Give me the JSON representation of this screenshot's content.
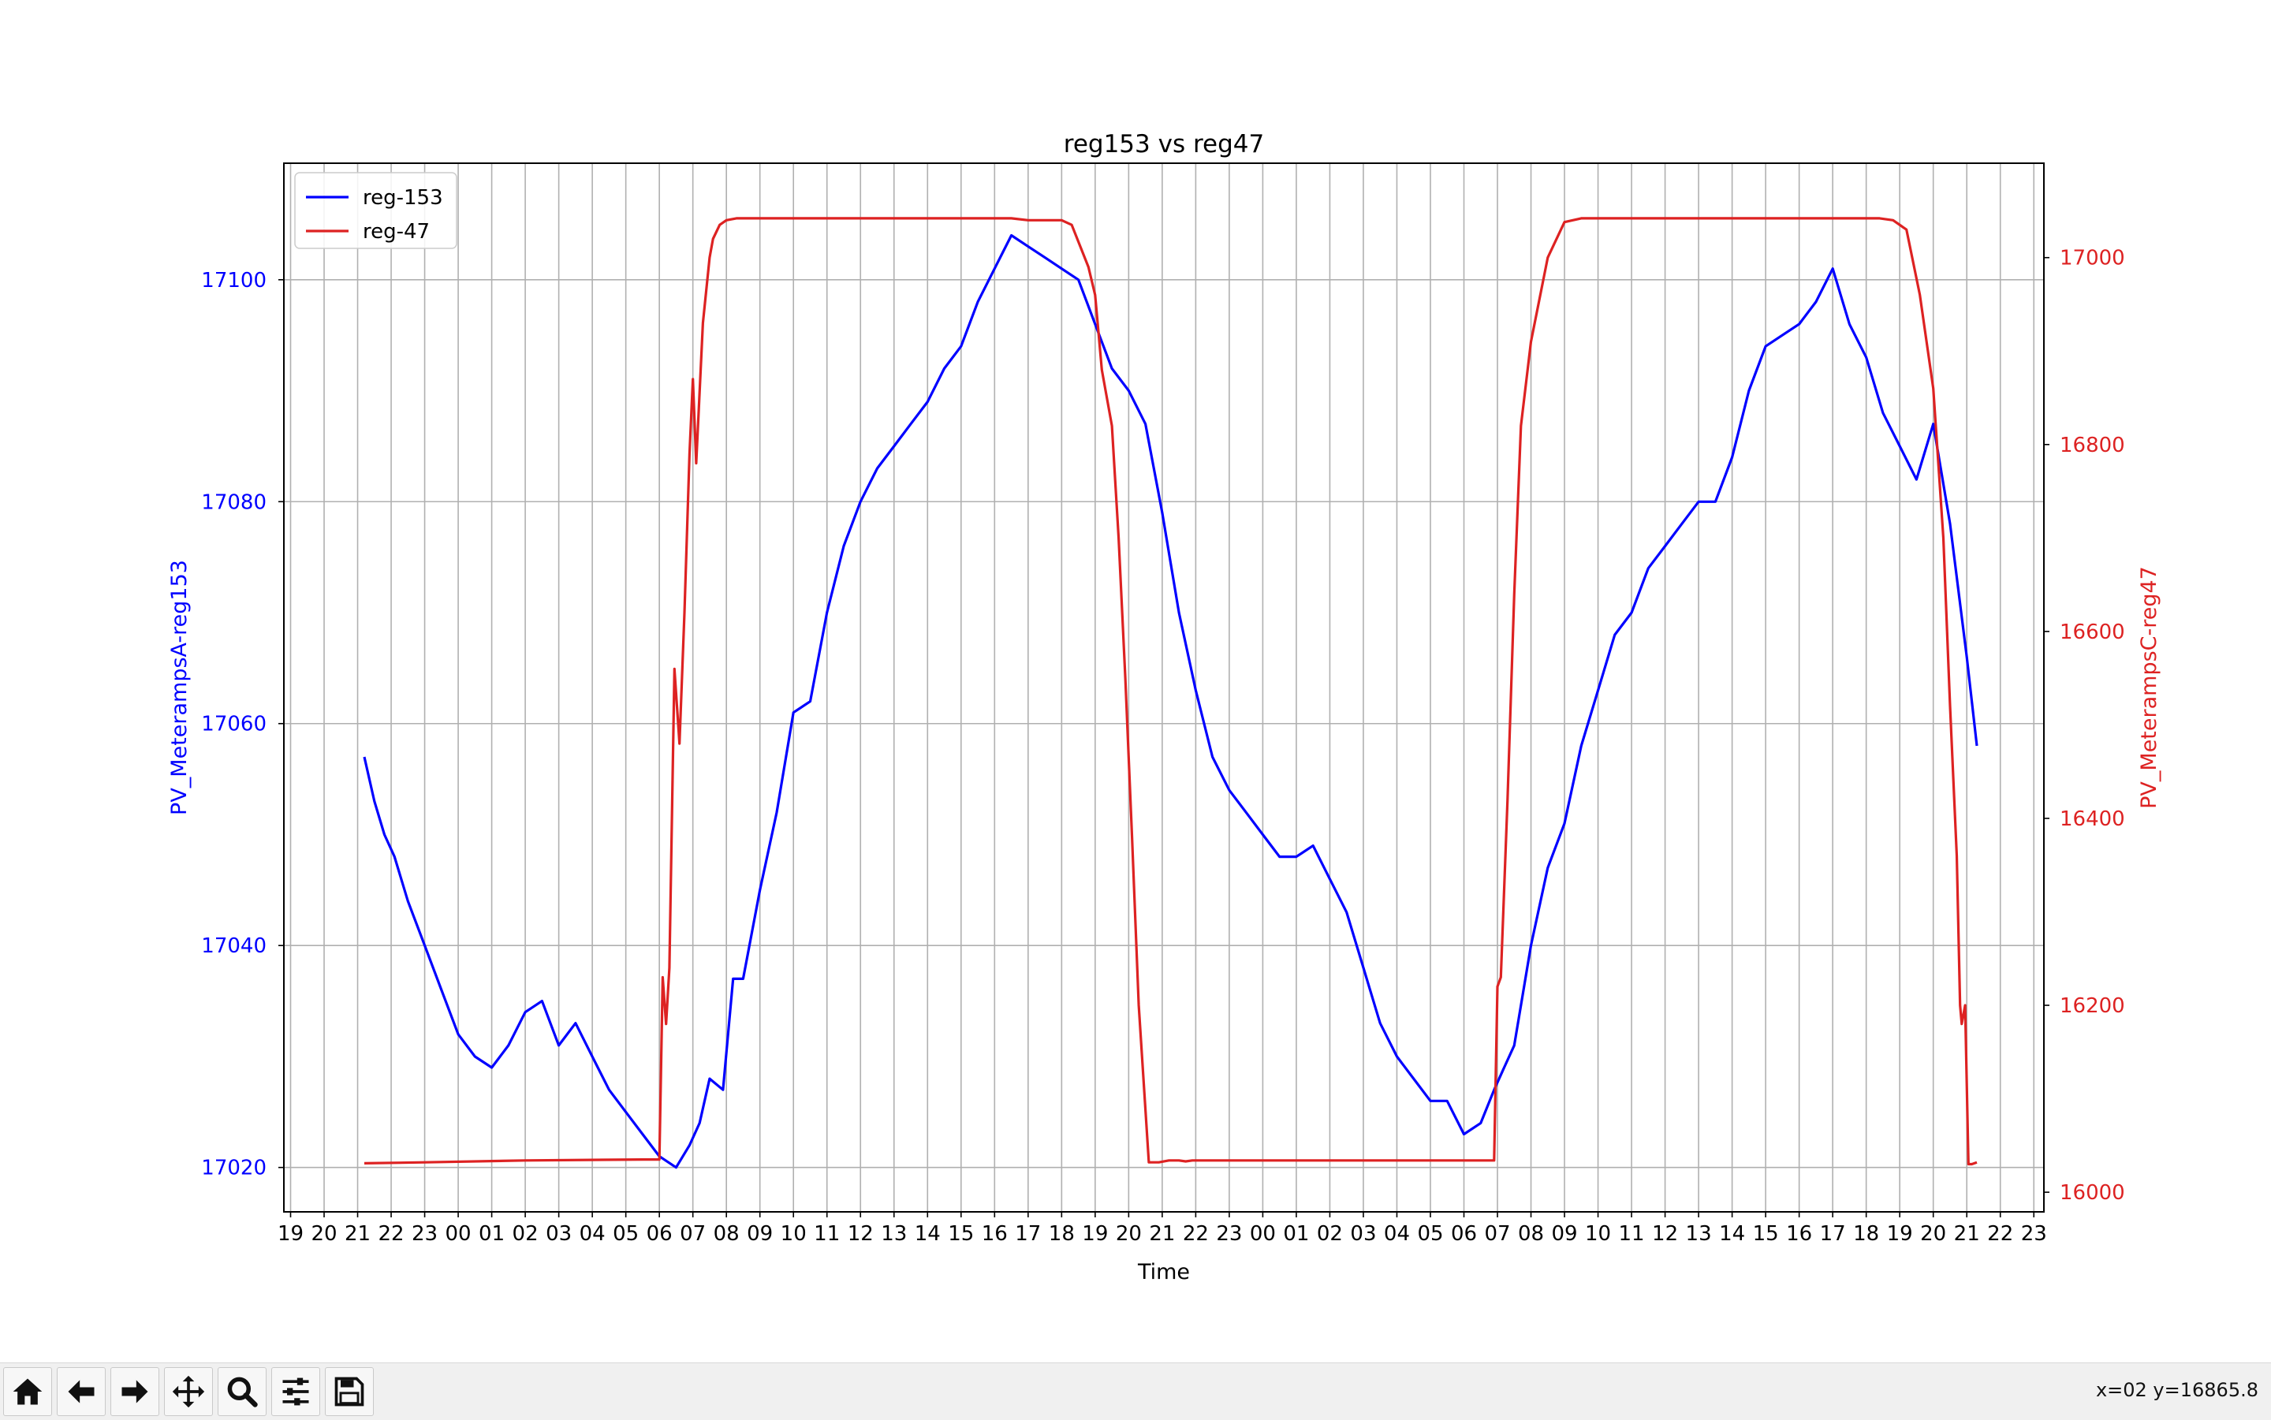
{
  "chart_data": {
    "type": "line",
    "title": "reg153 vs reg47",
    "xlabel": "Time",
    "ylabel_left": "PV_MeterampsA-reg153",
    "ylabel_right": "PV_MeterampsC-reg47",
    "x_tick_labels": [
      "19",
      "20",
      "21",
      "22",
      "23",
      "00",
      "01",
      "02",
      "03",
      "04",
      "05",
      "06",
      "07",
      "08",
      "09",
      "10",
      "11",
      "12",
      "13",
      "14",
      "15",
      "16",
      "17",
      "18",
      "19",
      "20",
      "21",
      "22",
      "23",
      "00",
      "01",
      "02",
      "03",
      "04",
      "05",
      "06",
      "07",
      "08",
      "09",
      "10",
      "11",
      "12",
      "13",
      "14",
      "15",
      "16",
      "17",
      "18",
      "19",
      "20",
      "21",
      "22",
      "23"
    ],
    "x_unit": "hour offset from first tick (19:00)",
    "xlim": [
      -0.2,
      52.3
    ],
    "ylim_left": [
      17016.0,
      17110.5
    ],
    "ylim_right": [
      15979.0,
      17101.0
    ],
    "y_ticks_left": [
      17020,
      17040,
      17060,
      17080,
      17100
    ],
    "y_ticks_right": [
      16000,
      16200,
      16400,
      16600,
      16800,
      17000
    ],
    "grid": true,
    "legend_position": "upper-left",
    "series": [
      {
        "name": "reg-153",
        "axis": "left",
        "color": "#0000ff",
        "x": [
          2.2,
          2.5,
          2.8,
          3.1,
          3.5,
          4.0,
          4.5,
          5.0,
          5.5,
          6.0,
          6.5,
          7.0,
          7.5,
          8.0,
          8.5,
          9.0,
          9.5,
          10.0,
          10.5,
          11.0,
          11.5,
          11.9,
          12.2,
          12.5,
          12.9,
          13.2,
          13.5,
          14.0,
          14.5,
          15.0,
          15.5,
          16.0,
          16.5,
          17.0,
          17.5,
          18.0,
          18.5,
          19.0,
          19.5,
          20.0,
          20.5,
          21.0,
          21.5,
          22.0,
          22.5,
          23.0,
          23.5,
          24.0,
          24.5,
          25.0,
          25.5,
          26.0,
          26.5,
          27.0,
          27.5,
          28.0,
          28.5,
          29.0,
          29.5,
          30.0,
          30.5,
          31.0,
          31.5,
          32.0,
          32.5,
          33.0,
          33.5,
          34.0,
          34.5,
          35.0,
          35.5,
          35.9,
          36.2,
          36.5,
          37.0,
          37.5,
          38.0,
          38.5,
          39.0,
          39.5,
          40.0,
          40.5,
          41.0,
          41.5,
          42.0,
          42.5,
          43.0,
          43.5,
          44.0,
          44.5,
          45.0,
          45.5,
          46.0,
          46.5,
          47.0,
          47.5,
          48.0,
          48.5,
          49.0,
          49.5,
          50.0,
          50.3
        ],
        "y": [
          17057,
          17053,
          17050,
          17048,
          17044,
          17040,
          17036,
          17032,
          17030,
          17029,
          17031,
          17034,
          17035,
          17031,
          17033,
          17030,
          17027,
          17025,
          17023,
          17021,
          17020,
          17022,
          17024,
          17028,
          17027,
          17037,
          17037,
          17045,
          17052,
          17061,
          17062,
          17070,
          17076,
          17080,
          17083,
          17085,
          17087,
          17089,
          17092,
          17094,
          17098,
          17101,
          17104,
          17103,
          17102,
          17101,
          17100,
          17096,
          17092,
          17090,
          17087,
          17079,
          17070,
          17063,
          17057,
          17054,
          17052,
          17050,
          17048,
          17048,
          17049,
          17046,
          17043,
          17038,
          17033,
          17030,
          17028,
          17026,
          17026,
          17023,
          17024,
          17027,
          17029,
          17031,
          17040,
          17047,
          17051,
          17058,
          17063,
          17068,
          17070,
          17074,
          17076,
          17078,
          17080,
          17080,
          17084,
          17090,
          17094,
          17095,
          17096,
          17098,
          17101,
          17096,
          17093,
          17088,
          17085,
          17082,
          17087,
          17078,
          17066,
          17058
        ]
      },
      {
        "name": "reg-47",
        "axis": "right",
        "color": "#dd2222",
        "x": [
          2.2,
          4.0,
          7.0,
          10.5,
          11.0,
          11.1,
          11.2,
          11.3,
          11.45,
          11.6,
          11.75,
          11.9,
          12.0,
          12.1,
          12.3,
          12.5,
          12.6,
          12.8,
          13.0,
          13.3,
          13.6,
          14.0,
          15.0,
          18.0,
          19.0,
          20.0,
          21.0,
          21.5,
          22.0,
          23.0,
          23.3,
          23.8,
          24.0,
          24.2,
          24.5,
          24.7,
          24.9,
          25.1,
          25.3,
          25.6,
          25.9,
          26.2,
          26.5,
          26.7,
          26.9,
          27.1,
          27.4,
          30.0,
          34.0,
          35.9,
          36.0,
          36.1,
          36.3,
          36.5,
          36.7,
          37.0,
          37.5,
          38.0,
          38.5,
          39.0,
          44.0,
          47.0,
          47.4,
          47.8,
          48.2,
          48.6,
          49.0,
          49.3,
          49.5,
          49.7,
          49.8,
          49.85,
          49.95,
          50.05,
          50.15,
          50.3
        ],
        "y": [
          16031,
          16032,
          16034,
          16035,
          16035,
          16230,
          16180,
          16240,
          16560,
          16480,
          16620,
          16790,
          16870,
          16780,
          16930,
          17000,
          17020,
          17035,
          17040,
          17042,
          17042,
          17042,
          17042,
          17042,
          17042,
          17042,
          17042,
          17042,
          17040,
          17040,
          17035,
          16990,
          16960,
          16880,
          16820,
          16700,
          16550,
          16380,
          16200,
          16032,
          16032,
          16034,
          16034,
          16033,
          16034,
          16034,
          16034,
          16034,
          16034,
          16034,
          16220,
          16230,
          16420,
          16640,
          16820,
          16910,
          17000,
          17038,
          17042,
          17042,
          17042,
          17042,
          17042,
          17040,
          17030,
          16960,
          16860,
          16700,
          16520,
          16360,
          16200,
          16180,
          16200,
          16030,
          16030,
          16032
        ]
      }
    ]
  },
  "toolbar": {
    "buttons": [
      {
        "name": "home-button",
        "icon": "home-icon"
      },
      {
        "name": "back-button",
        "icon": "arrow-left-icon"
      },
      {
        "name": "forward-button",
        "icon": "arrow-right-icon"
      },
      {
        "name": "pan-button",
        "icon": "move-arrows-icon"
      },
      {
        "name": "zoom-button",
        "icon": "magnifier-icon"
      },
      {
        "name": "configure-subplots-button",
        "icon": "sliders-icon"
      },
      {
        "name": "save-button",
        "icon": "floppy-disk-icon"
      }
    ],
    "coords": "x=02 y=16865.8"
  }
}
